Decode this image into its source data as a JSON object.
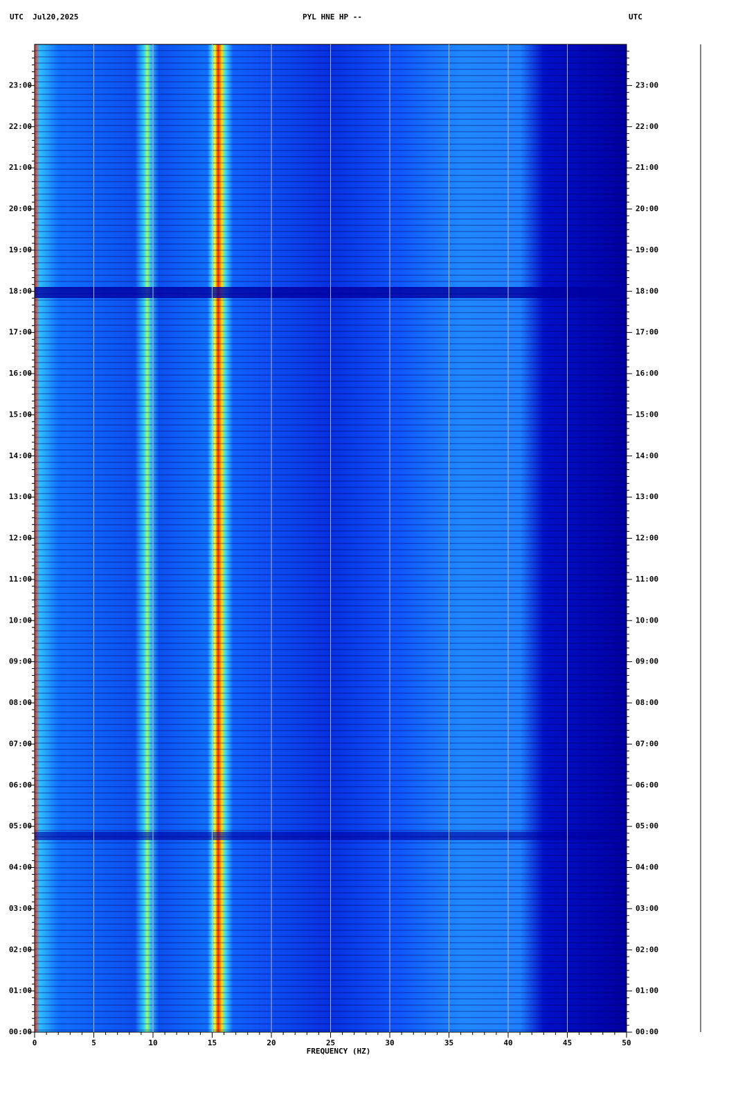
{
  "chart_data": {
    "type": "spectrogram",
    "title": "PYL HNE HP --",
    "left_label": "UTC  Jul20,2025",
    "right_label": "UTC",
    "xlabel": "FREQUENCY (HZ)",
    "xlim": [
      0,
      50
    ],
    "xticks": [
      0,
      5,
      10,
      15,
      20,
      25,
      30,
      35,
      40,
      45,
      50
    ],
    "ylim": [
      0,
      24
    ],
    "yticks": [
      {
        "value": 0,
        "label": "00:00"
      },
      {
        "value": 1,
        "label": "01:00"
      },
      {
        "value": 2,
        "label": "02:00"
      },
      {
        "value": 3,
        "label": "03:00"
      },
      {
        "value": 4,
        "label": "04:00"
      },
      {
        "value": 5,
        "label": "05:00"
      },
      {
        "value": 6,
        "label": "06:00"
      },
      {
        "value": 7,
        "label": "07:00"
      },
      {
        "value": 8,
        "label": "08:00"
      },
      {
        "value": 9,
        "label": "09:00"
      },
      {
        "value": 10,
        "label": "10:00"
      },
      {
        "value": 11,
        "label": "11:00"
      },
      {
        "value": 12,
        "label": "12:00"
      },
      {
        "value": 13,
        "label": "13:00"
      },
      {
        "value": 14,
        "label": "14:00"
      },
      {
        "value": 15,
        "label": "15:00"
      },
      {
        "value": 16,
        "label": "16:00"
      },
      {
        "value": 17,
        "label": "17:00"
      },
      {
        "value": 18,
        "label": "18:00"
      },
      {
        "value": 19,
        "label": "19:00"
      },
      {
        "value": 20,
        "label": "20:00"
      },
      {
        "value": 21,
        "label": "21:00"
      },
      {
        "value": 22,
        "label": "22:00"
      },
      {
        "value": 23,
        "label": "23:00"
      }
    ],
    "grid": true
  }
}
